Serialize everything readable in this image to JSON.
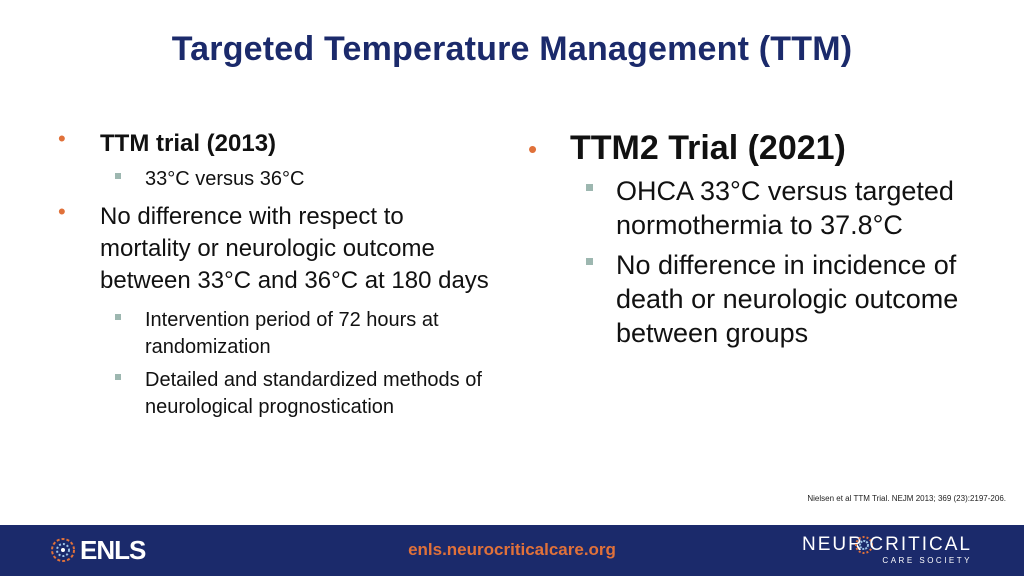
{
  "title": "Targeted Temperature Management (TTM)",
  "left": {
    "b1": "TTM trial (2013)",
    "b1_sub": "33°C versus 36°C",
    "b2": "No difference with respect to mortality or neurologic outcome between 33°C and 36°C at 180 days",
    "b2_sub1": "Intervention period of 72 hours at randomization",
    "b2_sub2": "Detailed and standardized methods of neurological prognostication"
  },
  "right": {
    "b1": "TTM2 Trial (2021)",
    "sub1": "OHCA 33°C versus targeted normothermia to 37.8°C",
    "sub2": "No difference in incidence of death or neurologic outcome between groups"
  },
  "citation": "Nielsen et al TTM Trial. NEJM 2013; 369 (23):2197-206.",
  "footer": {
    "left_logo": "ENLS",
    "url": "enls.neurocriticalcare.org",
    "right_logo_word1": "NEUR",
    "right_logo_word2": "CRITICAL",
    "right_logo_sub": "CARE SOCIETY",
    "bg_color": "#1b2a6b",
    "accent_color": "#e0713a"
  }
}
